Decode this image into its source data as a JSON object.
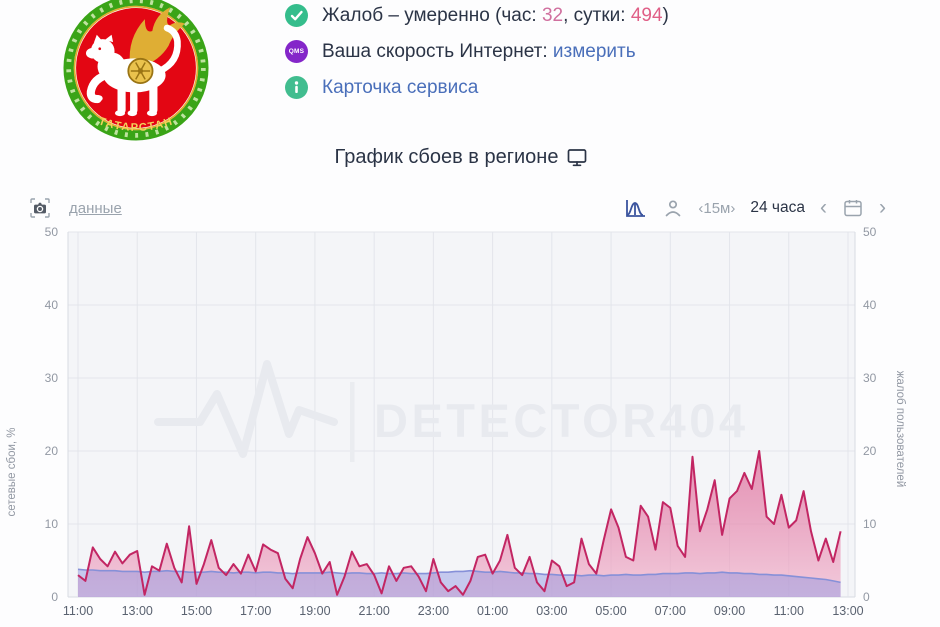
{
  "emblem": {
    "alt": "Герб Республики Татарстан",
    "ring_text": "ТАТАРСТАН",
    "red": "#e30613",
    "green": "#3aa417",
    "gold": "#dfae34",
    "white": "#ffffff"
  },
  "status": {
    "rows": [
      {
        "prefix": "Жалоб – умеренно (час: ",
        "hour": "32",
        "mid": ", сутки: ",
        "day": "494",
        "suffix": ")"
      },
      {
        "icon_text": "QMS",
        "label": "Ваша скорость Интернет: ",
        "link": "измерить"
      },
      {
        "link": "Карточка сервиса"
      }
    ],
    "check_color": "#35bd8c",
    "qms_color": "#8426c9",
    "info_color": "#41bd8f",
    "link_color": "#4a6fba"
  },
  "title": {
    "text": "График сбоев в регионе"
  },
  "toolbar": {
    "data_link": "данные",
    "interval": "‹15м›",
    "period": "24 часа",
    "prev": "‹",
    "next": "›"
  },
  "chart_data": {
    "type": "area",
    "title": "График сбоев в регионе",
    "interval_label": "15м",
    "period_label": "24 часа",
    "watermark": "DETECTOR404",
    "grid": true,
    "x_tick_labels": [
      "11:00",
      "13:00",
      "15:00",
      "17:00",
      "19:00",
      "21:00",
      "23:00",
      "01:00",
      "03:00",
      "05:00",
      "07:00",
      "09:00",
      "11:00",
      "13:00"
    ],
    "x_start": "11:00",
    "interval_minutes": 15,
    "y_left": {
      "label": "сетевые сбои, %",
      "ticks": [
        0,
        10,
        20,
        30,
        40,
        50
      ],
      "range": [
        0,
        50
      ]
    },
    "y_right": {
      "label": "жалоб пользователей",
      "ticks": [
        0,
        10,
        20,
        30,
        40,
        50
      ],
      "range": [
        0,
        50
      ]
    },
    "series": [
      {
        "name": "сетевые сбои, %",
        "color": "#c22663",
        "fill_top": "#d94f86",
        "fill_bottom": "#f2b9d0",
        "values": [
          3.0,
          2.2,
          6.8,
          5.2,
          4.2,
          6.2,
          4.6,
          5.8,
          6.3,
          0.3,
          4.2,
          3.6,
          7.3,
          4.0,
          2.0,
          9.7,
          1.8,
          4.5,
          7.8,
          4.0,
          3.0,
          4.5,
          3.2,
          5.8,
          3.5,
          7.2,
          6.5,
          6.0,
          2.5,
          1.2,
          5.2,
          8.2,
          6.0,
          3.2,
          4.8,
          0.3,
          2.8,
          6.2,
          4.2,
          4.5,
          3.0,
          0.5,
          4.2,
          2.2,
          4.0,
          4.2,
          2.8,
          0.8,
          5.2,
          2.0,
          0.8,
          1.5,
          0.3,
          2.2,
          5.5,
          5.8,
          3.2,
          5.0,
          8.5,
          4.0,
          3.0,
          5.5,
          2.0,
          0.8,
          5.0,
          4.2,
          1.5,
          2.0,
          8.0,
          4.5,
          3.2,
          7.8,
          12.0,
          9.5,
          5.5,
          5.0,
          12.5,
          11.0,
          6.5,
          13.0,
          12.2,
          7.0,
          5.5,
          19.2,
          9.0,
          12.0,
          16.0,
          8.5,
          13.5,
          14.5,
          17.0,
          14.8,
          20.0,
          11.0,
          10.0,
          14.0,
          9.5,
          10.5,
          14.5,
          9.0,
          5.0,
          8.0,
          4.8,
          9.0
        ]
      },
      {
        "name": "жалоб пользователей",
        "color": "#8690d8",
        "fill": "rgba(130,140,225,0.42)",
        "values": [
          3.8,
          3.7,
          3.7,
          3.6,
          3.6,
          3.6,
          3.5,
          3.5,
          3.5,
          3.4,
          3.5,
          3.5,
          3.6,
          3.5,
          3.5,
          3.4,
          3.4,
          3.4,
          3.5,
          3.4,
          3.4,
          3.3,
          3.4,
          3.4,
          3.3,
          3.4,
          3.4,
          3.3,
          3.3,
          3.2,
          3.3,
          3.3,
          3.3,
          3.3,
          3.4,
          3.3,
          3.2,
          3.3,
          3.3,
          3.2,
          3.2,
          3.3,
          3.2,
          3.2,
          3.3,
          3.2,
          3.2,
          3.2,
          3.3,
          3.4,
          3.4,
          3.5,
          3.5,
          3.6,
          3.5,
          3.4,
          3.4,
          3.5,
          3.4,
          3.3,
          3.3,
          3.2,
          3.2,
          3.1,
          3.1,
          3.0,
          3.0,
          3.0,
          2.9,
          3.0,
          3.0,
          2.9,
          3.0,
          3.0,
          3.1,
          3.0,
          3.0,
          3.1,
          3.1,
          3.2,
          3.2,
          3.2,
          3.3,
          3.3,
          3.2,
          3.3,
          3.3,
          3.4,
          3.3,
          3.3,
          3.2,
          3.2,
          3.1,
          3.1,
          3.0,
          3.0,
          2.9,
          2.8,
          2.7,
          2.6,
          2.5,
          2.4,
          2.2,
          2.0
        ]
      }
    ]
  }
}
